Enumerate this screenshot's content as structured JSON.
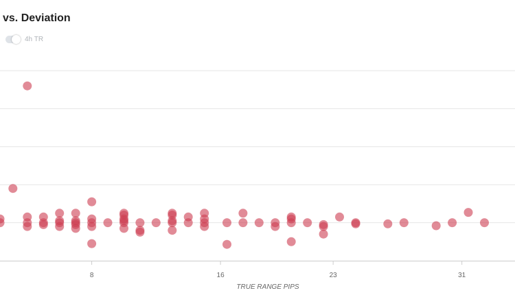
{
  "title": "vs. Deviation",
  "toggle": {
    "label": "4h TR",
    "on": false
  },
  "colors": {
    "point": "#cd3d52",
    "grid": "#e6e6e6",
    "axis": "#cccccc",
    "text": "#666666"
  },
  "chart_data": {
    "type": "scatter",
    "title": "vs. Deviation",
    "xlabel": "TRUE RANGE PIPS",
    "ylabel": "",
    "xlim": [
      2.3,
      34.3
    ],
    "ylim": [
      0,
      5
    ],
    "x_ticks": [
      8,
      16,
      23,
      31
    ],
    "grid": true,
    "legend": "none",
    "series": [
      {
        "points": [
          [
            2.3,
            1.1
          ],
          [
            2.3,
            1.0
          ],
          [
            3.1,
            1.9
          ],
          [
            4.0,
            4.6
          ],
          [
            4.0,
            1.15
          ],
          [
            4.0,
            1.0
          ],
          [
            4.0,
            0.9
          ],
          [
            5.0,
            1.15
          ],
          [
            5.0,
            1.0
          ],
          [
            5.0,
            0.95
          ],
          [
            6.0,
            1.25
          ],
          [
            6.0,
            1.05
          ],
          [
            6.0,
            1.0
          ],
          [
            6.0,
            0.9
          ],
          [
            7.0,
            1.25
          ],
          [
            7.0,
            1.05
          ],
          [
            7.0,
            1.0
          ],
          [
            7.0,
            0.95
          ],
          [
            7.0,
            0.85
          ],
          [
            8.0,
            1.55
          ],
          [
            8.0,
            1.1
          ],
          [
            8.0,
            1.0
          ],
          [
            8.0,
            0.9
          ],
          [
            8.0,
            0.45
          ],
          [
            9.0,
            1.0
          ],
          [
            10.0,
            1.25
          ],
          [
            10.0,
            1.2
          ],
          [
            10.0,
            1.1
          ],
          [
            10.0,
            1.05
          ],
          [
            10.0,
            1.0
          ],
          [
            10.0,
            0.85
          ],
          [
            11.0,
            1.0
          ],
          [
            11.0,
            0.8
          ],
          [
            11.0,
            0.75
          ],
          [
            12.0,
            1.0
          ],
          [
            13.0,
            1.25
          ],
          [
            13.0,
            1.2
          ],
          [
            13.0,
            1.05
          ],
          [
            13.0,
            1.0
          ],
          [
            13.0,
            0.8
          ],
          [
            14.0,
            1.15
          ],
          [
            14.0,
            1.0
          ],
          [
            15.0,
            1.25
          ],
          [
            15.0,
            1.1
          ],
          [
            15.0,
            1.0
          ],
          [
            15.0,
            0.9
          ],
          [
            16.4,
            1.0
          ],
          [
            16.4,
            0.43
          ],
          [
            17.4,
            1.25
          ],
          [
            17.4,
            1.0
          ],
          [
            18.4,
            1.0
          ],
          [
            19.4,
            1.0
          ],
          [
            19.4,
            0.9
          ],
          [
            20.4,
            1.15
          ],
          [
            20.4,
            1.1
          ],
          [
            20.4,
            1.0
          ],
          [
            20.4,
            0.5
          ],
          [
            21.4,
            1.0
          ],
          [
            22.4,
            0.95
          ],
          [
            22.4,
            0.9
          ],
          [
            22.4,
            0.7
          ],
          [
            23.4,
            1.15
          ],
          [
            24.4,
            1.0
          ],
          [
            24.4,
            0.97
          ],
          [
            26.4,
            0.97
          ],
          [
            27.4,
            1.0
          ],
          [
            29.4,
            0.92
          ],
          [
            30.4,
            1.0
          ],
          [
            31.4,
            1.27
          ],
          [
            32.4,
            1.0
          ]
        ]
      }
    ]
  }
}
